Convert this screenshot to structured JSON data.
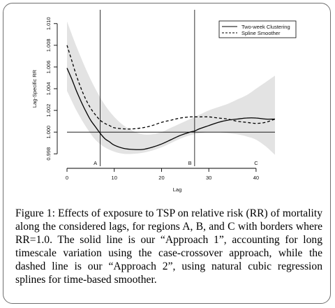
{
  "chart_data": {
    "type": "line",
    "title": "",
    "xlabel": "Lag",
    "ylabel": "Lag-Specific RR",
    "xlim": [
      0,
      44
    ],
    "ylim": [
      0.9975,
      1.0105
    ],
    "x_ticks": [
      0,
      10,
      20,
      30,
      40
    ],
    "x_tick_labels": [
      "0",
      "10",
      "20",
      "30",
      "40"
    ],
    "y_ticks": [
      0.998,
      1.0,
      1.002,
      1.004,
      1.006,
      1.008,
      1.01
    ],
    "y_tick_labels": [
      "0.998",
      "1.000",
      "1.002",
      "1.004",
      "1.006",
      "1.008",
      "1.010"
    ],
    "reference_line_y": 1.0,
    "border_lags": [
      7,
      27
    ],
    "region_labels": [
      {
        "text": "A",
        "x": 6
      },
      {
        "text": "B",
        "x": 26
      },
      {
        "text": "C",
        "x": 40
      }
    ],
    "legend_position": "top-right",
    "series": [
      {
        "name": "Two-week Clustering",
        "style": "solid",
        "x": [
          0,
          1,
          2,
          3,
          4,
          5,
          6,
          7,
          8,
          9,
          10,
          12,
          14,
          16,
          18,
          20,
          22,
          24,
          26,
          27,
          28,
          30,
          32,
          34,
          36,
          38,
          40,
          42,
          44
        ],
        "y": [
          1.0059,
          1.0049,
          1.0038,
          1.0028,
          1.0019,
          1.0011,
          1.0005,
          0.9999,
          0.9994,
          0.9991,
          0.9988,
          0.9985,
          0.9984,
          0.9984,
          0.9986,
          0.9989,
          0.9993,
          0.9997,
          1.0,
          1.0001,
          1.0003,
          1.0006,
          1.0009,
          1.0011,
          1.0012,
          1.0013,
          1.0013,
          1.0012,
          1.0012
        ]
      },
      {
        "name": "Spline Smoother",
        "style": "dashed",
        "x": [
          0,
          1,
          2,
          3,
          4,
          5,
          6,
          7,
          8,
          9,
          10,
          12,
          14,
          16,
          18,
          20,
          22,
          24,
          26,
          28,
          30,
          32,
          34,
          36,
          38,
          40,
          42,
          44
        ],
        "y": [
          1.008,
          1.0066,
          1.0052,
          1.004,
          1.003,
          1.0022,
          1.0016,
          1.0011,
          1.0008,
          1.0006,
          1.0004,
          1.0003,
          1.0003,
          1.0004,
          1.0006,
          1.0009,
          1.0011,
          1.0013,
          1.0014,
          1.0014,
          1.0014,
          1.0013,
          1.0012,
          1.001,
          1.0009,
          1.0008,
          1.0009,
          1.0012
        ]
      }
    ],
    "confidence_band": {
      "x": [
        0,
        2,
        4,
        6,
        8,
        10,
        12,
        14,
        16,
        18,
        20,
        22,
        24,
        26,
        28,
        30,
        32,
        34,
        36,
        38,
        40,
        42,
        44
      ],
      "lower": [
        1.0038,
        1.002,
        1.0005,
        0.9993,
        0.9986,
        0.9982,
        0.998,
        0.998,
        0.9981,
        0.9983,
        0.9986,
        0.999,
        0.9994,
        0.9997,
        0.9999,
        1.0,
        1.0,
        0.9999,
        0.9998,
        0.9996,
        0.9993,
        0.9987,
        0.9979
      ],
      "upper": [
        1.0102,
        1.0079,
        1.0058,
        1.004,
        1.0025,
        1.0014,
        1.0006,
        1.0001,
        0.9998,
        0.9998,
        1.0,
        1.0004,
        1.0008,
        1.0012,
        1.0016,
        1.002,
        1.0023,
        1.0026,
        1.003,
        1.0034,
        1.004,
        1.0046,
        1.0052
      ],
      "color": "#e3e3e3"
    },
    "colors": {
      "line": "#000000",
      "axis": "#000000",
      "band": "#e3e3e3"
    }
  },
  "caption": {
    "label": "Figure 1:",
    "text": "Effects of exposure to TSP on relative risk (RR) of mortality along the considered lags, for regions A, B, and C with borders where RR=1.0. The solid line is our “Approach 1”, accounting for long timescale variation using the case-crossover approach, while the dashed line is our “Approach 2”, using natural cubic regression splines for time-based smoother."
  }
}
